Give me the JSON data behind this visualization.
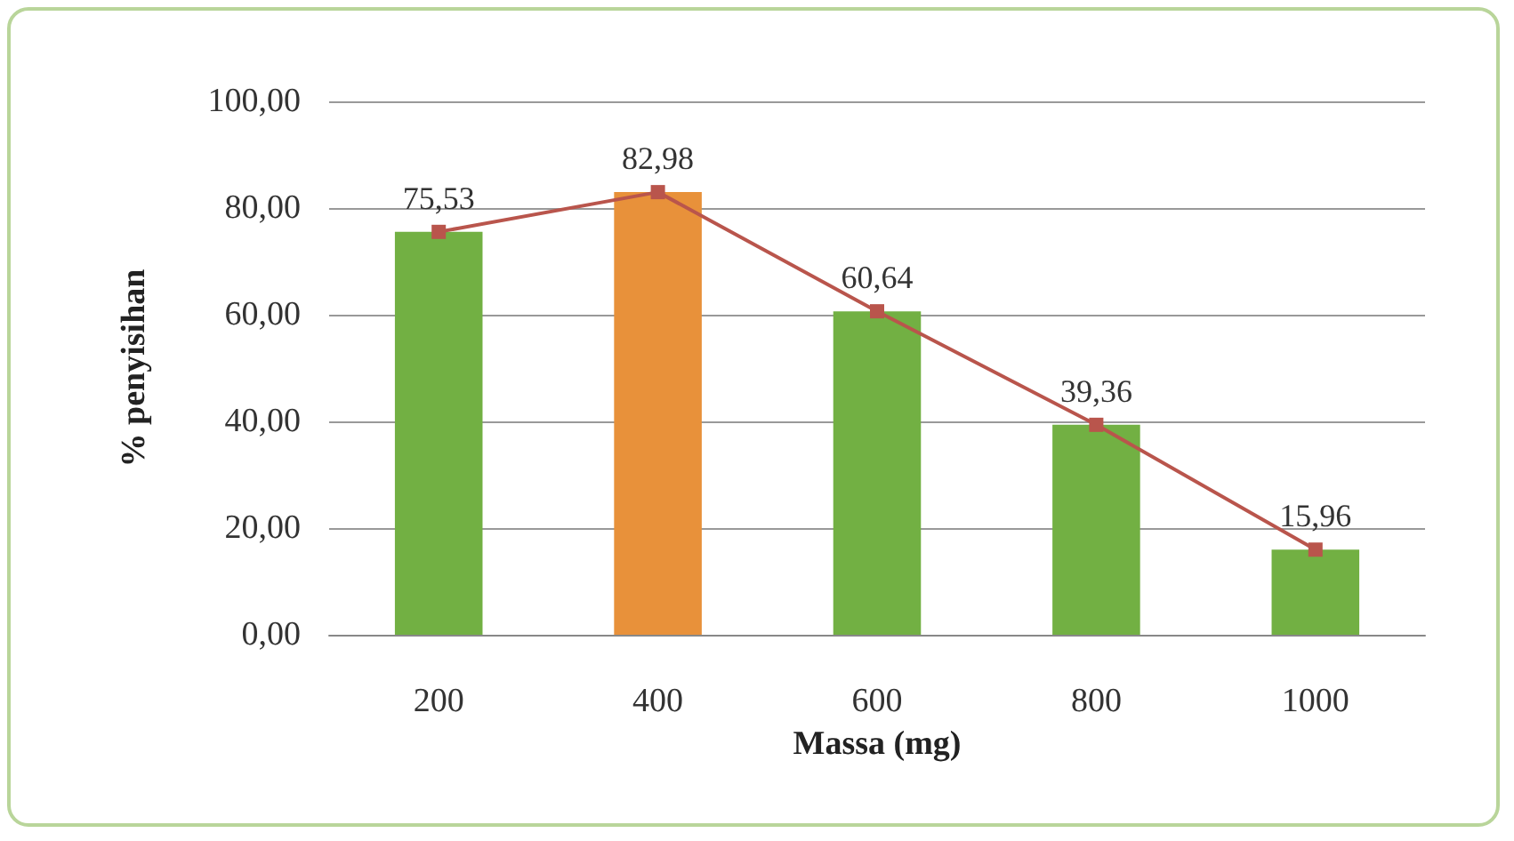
{
  "chart_data": {
    "type": "bar",
    "xlabel": "Massa (mg)",
    "ylabel": "% penyisihan",
    "categories": [
      "200",
      "400",
      "600",
      "800",
      "1000"
    ],
    "series": [
      {
        "colors": [
          "#72b043",
          "#e8913a",
          "#72b043",
          "#72b043",
          "#72b043"
        ],
        "values": [
          75.53,
          82.98,
          60.64,
          39.36,
          15.96
        ],
        "value_labels": [
          "75,53",
          "82,98",
          "60,64",
          "39,36",
          "15,96"
        ]
      },
      {
        "type": "line",
        "color": "#b9554c",
        "values": [
          75.53,
          82.98,
          60.64,
          39.36,
          15.96
        ],
        "marker": "square",
        "line_style": "solid"
      }
    ],
    "ylim": [
      0,
      100
    ],
    "yticks": [
      {
        "value": 0,
        "label": "0,00"
      },
      {
        "value": 20,
        "label": "20,00"
      },
      {
        "value": 40,
        "label": "40,00"
      },
      {
        "value": 60,
        "label": "60,00"
      },
      {
        "value": 80,
        "label": "80,00"
      },
      {
        "value": 100,
        "label": "100,00"
      }
    ],
    "grid": "y"
  }
}
